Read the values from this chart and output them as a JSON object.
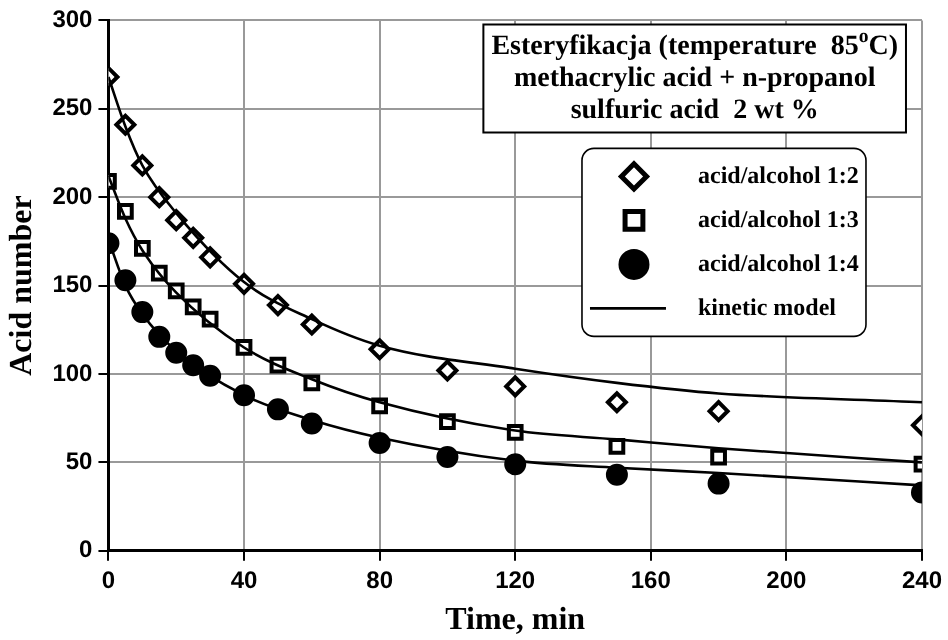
{
  "chart_data": {
    "type": "scatter",
    "xlabel": "Time, min",
    "ylabel": "Acid number",
    "annotations": [
      "Esteryfikacja (temperature  85$^{o}$C)",
      "methacrylic acid + n-propanol",
      "sulfuric acid  2 wt %"
    ],
    "xlim": [
      0,
      240
    ],
    "xticks": [
      0,
      40,
      80,
      120,
      160,
      200,
      240
    ],
    "ylim": [
      0,
      300
    ],
    "yticks": [
      0,
      50,
      100,
      150,
      200,
      250,
      300
    ],
    "grid": true,
    "legend": "top right",
    "series": [
      {
        "name": "acid/alcohol 1:2",
        "type": "scatter",
        "marker": "diamond",
        "color": "#000000",
        "x": [
          0,
          5,
          10,
          15,
          20,
          25,
          30,
          40,
          50,
          60,
          80,
          100,
          120,
          150,
          180,
          240
        ],
        "values": [
          268,
          241,
          218,
          200,
          187,
          177,
          166,
          151,
          139,
          128,
          114,
          102,
          93,
          84,
          79,
          71
        ]
      },
      {
        "name": "acid/alcohol 1:3",
        "type": "scatter",
        "marker": "square",
        "color": "#000000",
        "x": [
          0,
          5,
          10,
          15,
          20,
          25,
          30,
          40,
          50,
          60,
          80,
          100,
          120,
          150,
          180,
          240
        ],
        "values": [
          209,
          192,
          171,
          157,
          147,
          138,
          131,
          115,
          105,
          95,
          82,
          73,
          67,
          59,
          53,
          49
        ]
      },
      {
        "name": "acid/alcohol 1:4",
        "type": "scatter",
        "marker": "circle",
        "color": "#000000",
        "x": [
          0,
          5,
          10,
          15,
          20,
          25,
          30,
          40,
          50,
          60,
          80,
          100,
          120,
          150,
          180,
          240
        ],
        "values": [
          174,
          153,
          135,
          121,
          112,
          105,
          99,
          88,
          80,
          72,
          61,
          53,
          49,
          43,
          38,
          33
        ]
      },
      {
        "name": "kinetic model",
        "type": "line",
        "marker": "none",
        "color": "#000000",
        "x": [
          0,
          5,
          10,
          20,
          40,
          60,
          80,
          120,
          150,
          180,
          240
        ],
        "values": [
          268,
          240,
          218,
          191,
          152,
          131,
          116,
          103,
          95,
          89,
          84
        ]
      },
      {
        "type": "line",
        "marker": "none",
        "color": "#000000",
        "x": [
          0,
          5,
          10,
          20,
          40,
          60,
          80,
          120,
          150,
          180,
          240
        ],
        "values": [
          212,
          188,
          170,
          146,
          115,
          97,
          84,
          68,
          63,
          58,
          50
        ]
      },
      {
        "type": "line",
        "marker": "none",
        "color": "#000000",
        "x": [
          0,
          5,
          10,
          20,
          40,
          60,
          80,
          120,
          150,
          180,
          240
        ],
        "values": [
          176,
          150,
          134,
          113,
          88,
          74,
          64,
          51,
          47,
          44,
          37
        ]
      }
    ]
  }
}
